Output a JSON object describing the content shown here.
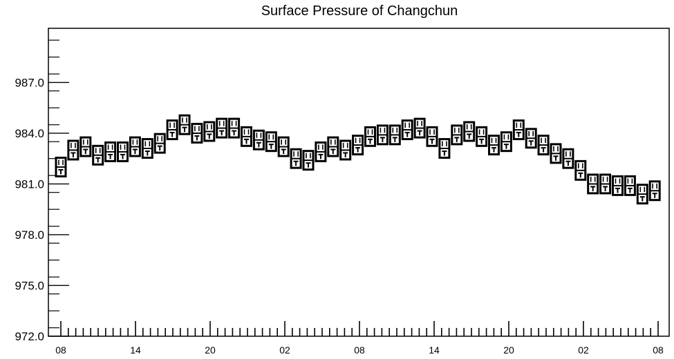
{
  "chart_data": {
    "type": "box",
    "title": "Surface Pressure of Changchun",
    "xlabel": "",
    "ylabel": "",
    "ylim": [
      972.0,
      990.2
    ],
    "yticks": [
      "972.0",
      "975.0",
      "978.0",
      "981.0",
      "984.0",
      "987.0"
    ],
    "xtick_labels": [
      {
        "index": 0,
        "label": "08"
      },
      {
        "index": 10,
        "label": "14"
      },
      {
        "index": 20,
        "label": "20"
      },
      {
        "index": 30,
        "label": "02"
      },
      {
        "index": 40,
        "label": "08"
      },
      {
        "index": 50,
        "label": "14"
      },
      {
        "index": 60,
        "label": "20"
      },
      {
        "index": 70,
        "label": "02"
      },
      {
        "index": 80,
        "label": "08"
      }
    ],
    "grid": false,
    "series": [
      {
        "median": [
          982.0,
          983.0,
          983.2,
          982.7,
          982.9,
          982.9,
          983.2,
          983.1,
          983.4,
          984.2,
          984.5,
          984.0,
          984.1,
          984.3,
          984.3,
          983.8,
          983.6,
          983.5,
          983.2,
          982.5,
          982.4,
          982.9,
          983.2,
          983.0,
          983.3,
          983.8,
          983.9,
          983.9,
          984.2,
          984.3,
          983.8,
          983.1,
          983.9,
          984.1,
          983.8,
          983.3,
          983.5,
          984.2,
          983.7,
          983.3,
          982.8,
          982.5,
          981.8,
          981.0,
          981.0,
          980.9,
          980.9,
          980.4,
          980.6
        ],
        "half_box": [
          0.55,
          0.55,
          0.55,
          0.55,
          0.55,
          0.55,
          0.55,
          0.55,
          0.55,
          0.55,
          0.55,
          0.55,
          0.55,
          0.55,
          0.55,
          0.55,
          0.55,
          0.55,
          0.55,
          0.55,
          0.55,
          0.55,
          0.55,
          0.55,
          0.55,
          0.55,
          0.55,
          0.55,
          0.55,
          0.55,
          0.55,
          0.55,
          0.55,
          0.55,
          0.55,
          0.55,
          0.55,
          0.55,
          0.55,
          0.55,
          0.55,
          0.55,
          0.55,
          0.55,
          0.55,
          0.55,
          0.55,
          0.55,
          0.55
        ]
      }
    ]
  }
}
